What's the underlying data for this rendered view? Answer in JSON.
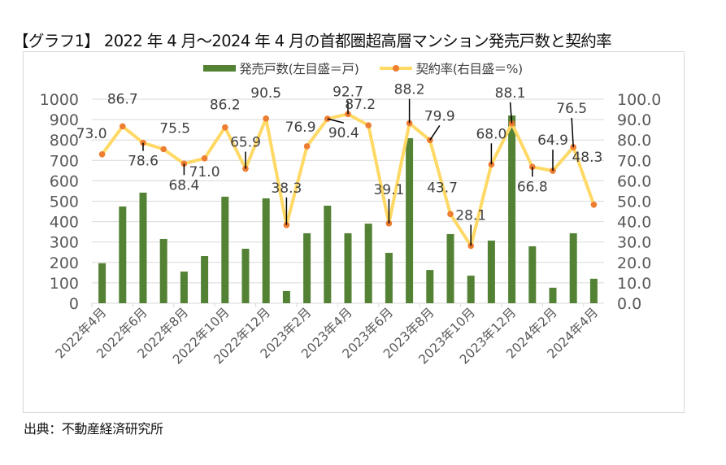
{
  "title": "【グラフ1】 2022 年 4 月～2024 年 4 月の首都圏超高層マンション発売戸数と契約率",
  "source": "出典：不動産経済研究所",
  "colors": {
    "bar": "#548235",
    "line": "#ffd966",
    "marker": "#ed7d31",
    "grid": "#d9d9d9",
    "tick_text": "#595959",
    "leader": "#000000"
  },
  "legend": [
    {
      "name": "発売戸数(左目盛＝戸)",
      "type": "bar"
    },
    {
      "name": "契約率(右目盛＝%)",
      "type": "line"
    }
  ],
  "chart_data": {
    "type": "bar+line",
    "title": "【グラフ1】 2022 年 4 月～2024 年 4 月の首都圏超高層マンション発売戸数と契約率",
    "categories": [
      "2022年4月",
      "2022年5月",
      "2022年6月",
      "2022年7月",
      "2022年8月",
      "2022年9月",
      "2022年10月",
      "2022年11月",
      "2022年12月",
      "2023年1月",
      "2023年2月",
      "2023年3月",
      "2023年4月",
      "2023年5月",
      "2023年6月",
      "2023年7月",
      "2023年8月",
      "2023年9月",
      "2023年10月",
      "2023年11月",
      "2023年12月",
      "2024年1月",
      "2024年2月",
      "2024年3月",
      "2024年4月"
    ],
    "x_tick_labels": [
      "2022年4月",
      "2022年6月",
      "2022年8月",
      "2022年10月",
      "2022年12月",
      "2023年2月",
      "2023年4月",
      "2023年6月",
      "2023年8月",
      "2023年10月",
      "2023年12月",
      "2024年2月",
      "2024年4月"
    ],
    "series": [
      {
        "name": "発売戸数(左目盛＝戸)",
        "type": "bar",
        "axis": "left",
        "values": [
          196,
          474,
          542,
          315,
          155,
          231,
          522,
          267,
          514,
          60,
          343,
          478,
          343,
          390,
          247,
          809,
          163,
          339,
          135,
          307,
          920,
          279,
          76,
          343,
          120
        ]
      },
      {
        "name": "契約率(右目盛＝%)",
        "type": "line",
        "axis": "right",
        "values": [
          73.0,
          86.7,
          78.6,
          75.5,
          68.4,
          71.0,
          86.2,
          65.9,
          90.5,
          38.3,
          76.9,
          90.4,
          92.7,
          87.2,
          39.1,
          88.2,
          79.9,
          43.7,
          28.1,
          68.0,
          88.1,
          66.8,
          64.9,
          76.5,
          48.3
        ],
        "data_labels": [
          "73.0",
          "86.7",
          "78.6",
          "75.5",
          "68.4",
          "71.0",
          "86.2",
          "65.9",
          "90.5",
          "38.3",
          "76.9",
          "90.4",
          "92.7",
          "87.2",
          "39.1",
          "88.2",
          "79.9",
          "43.7",
          "28.1",
          "68.0",
          "88.1",
          "66.8",
          "64.9",
          "76.5",
          "48.3"
        ]
      }
    ],
    "y_left": {
      "label": "",
      "range": [
        0,
        1000
      ],
      "ticks": [
        "0",
        "100",
        "200",
        "300",
        "400",
        "500",
        "600",
        "700",
        "800",
        "900",
        "1000"
      ]
    },
    "y_right": {
      "label": "",
      "range": [
        0,
        100
      ],
      "ticks": [
        "0.0",
        "10.0",
        "20.0",
        "30.0",
        "40.0",
        "50.0",
        "60.0",
        "70.0",
        "80.0",
        "90.0",
        "100.0"
      ]
    },
    "grid": true,
    "legend_position": "top"
  }
}
